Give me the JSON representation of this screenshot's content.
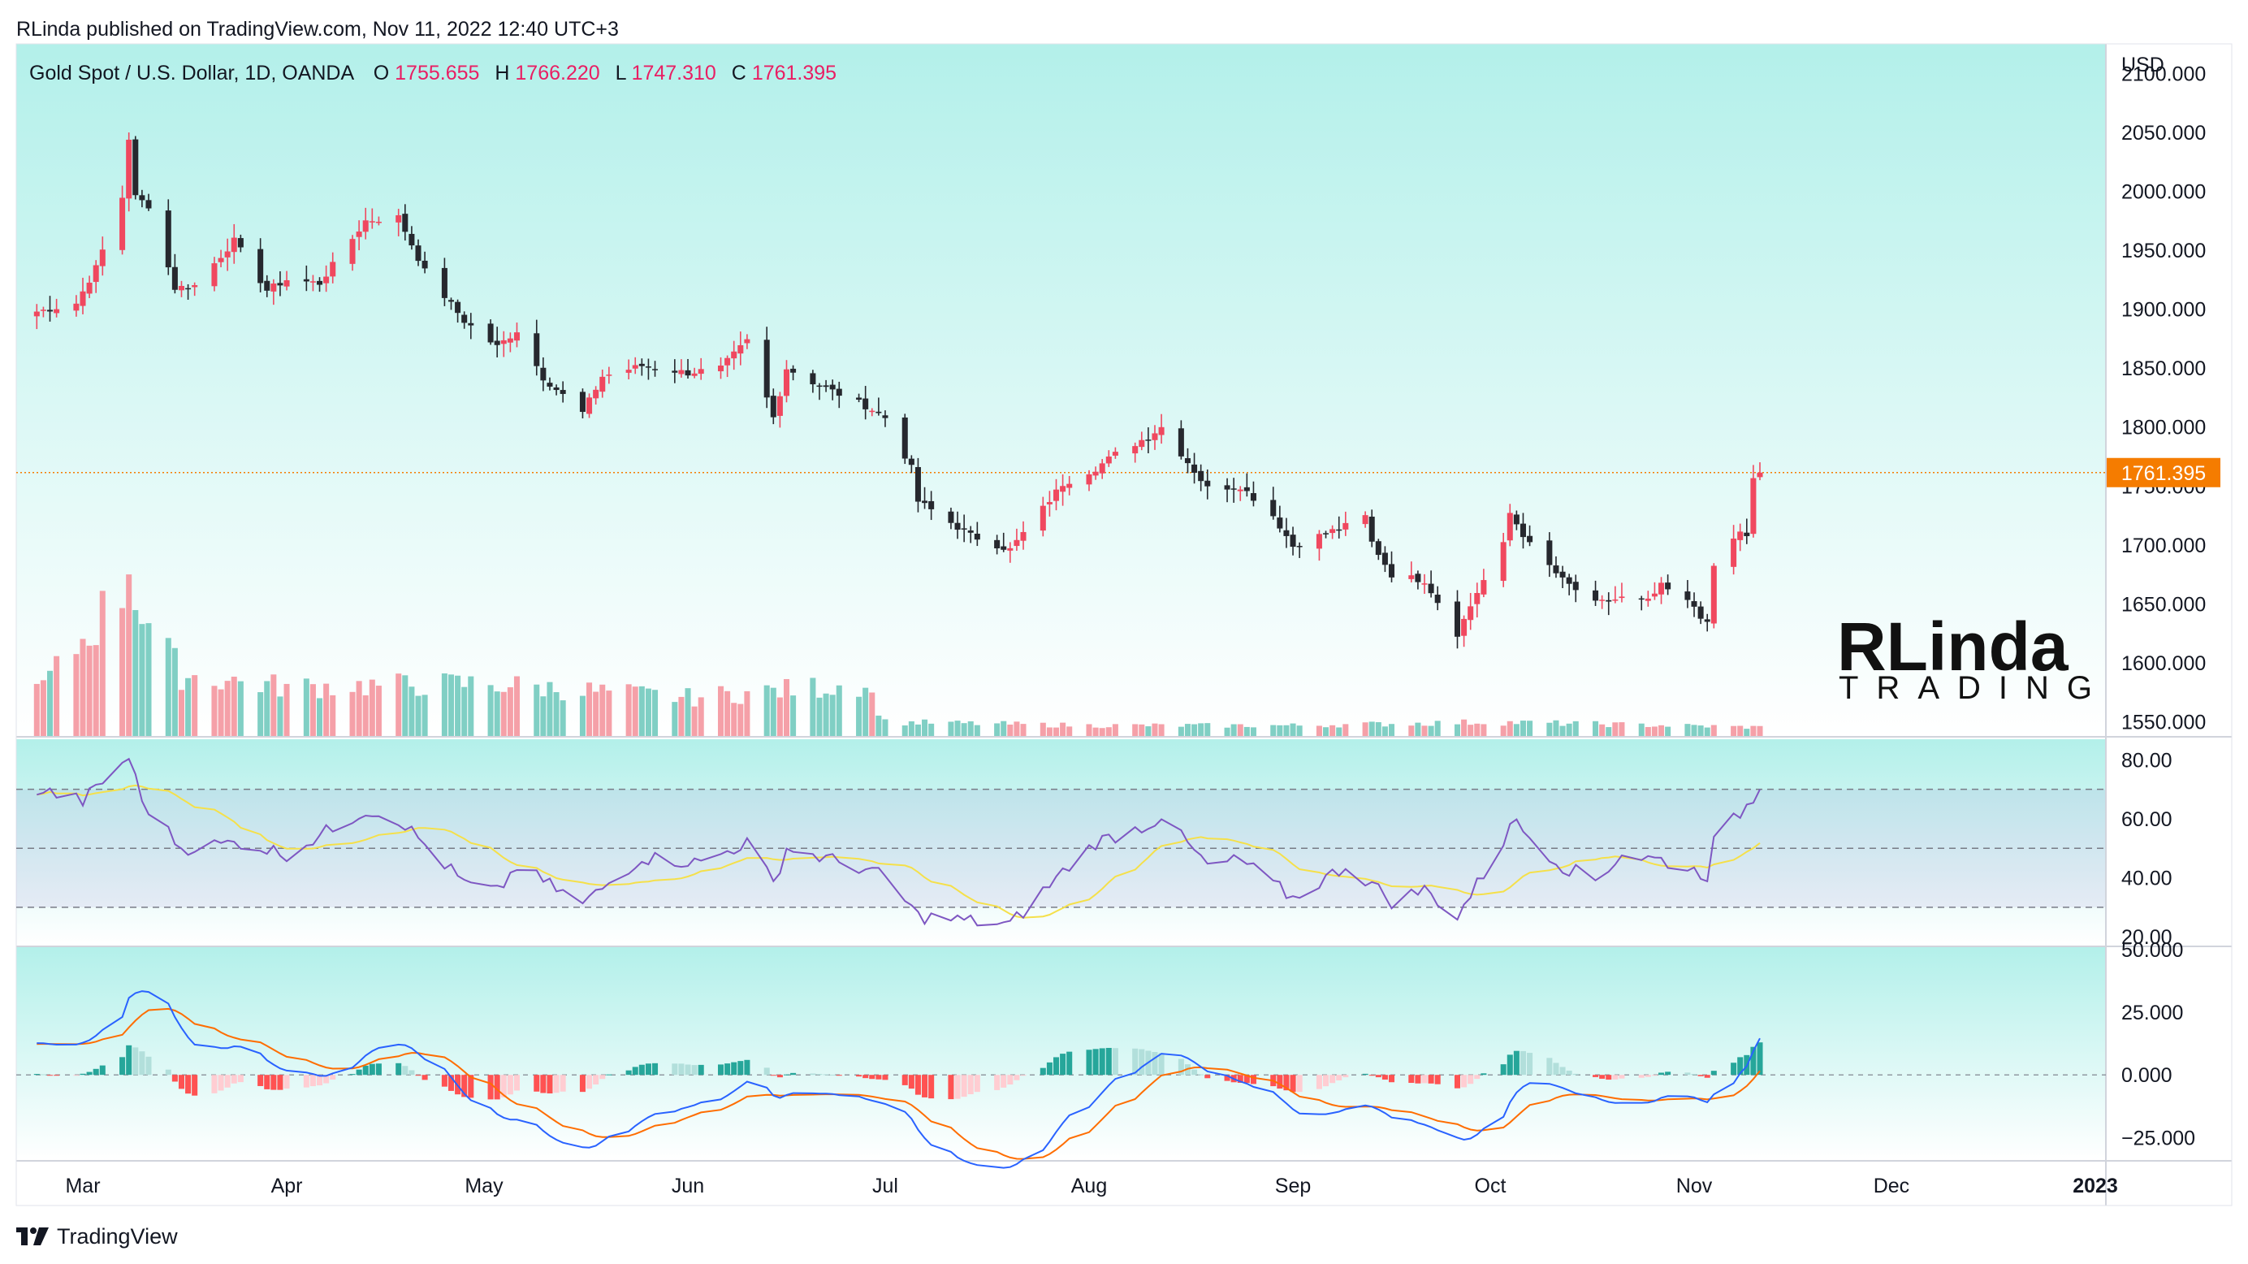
{
  "header": {
    "published_by": "RLinda published on TradingView.com, Nov 11, 2022 12:40 UTC+3"
  },
  "footer": {
    "brand": "TradingView"
  },
  "watermark": {
    "text_top": "RLinda",
    "text_bottom": "TRADING"
  },
  "colors": {
    "bg_top": "#b3f0ea",
    "bg_bottom": "#ffffff",
    "candle_up": "#f0485f",
    "candle_down": "#26282e",
    "volume_up": "#f5a0a8",
    "volume_down": "#80cfc4",
    "rsi_line": "#7e57c2",
    "rsi_ma": "#f5e04a",
    "macd_line": "#2962ff",
    "signal_line": "#ff6d00",
    "hist_pos_strong": "#26a69a",
    "hist_pos_weak": "#b2dfdb",
    "hist_neg_strong": "#ff5252",
    "hist_neg_weak": "#ffcdd2",
    "price_label_bg": "#f57c00",
    "legend_values": "#e91e63"
  },
  "chart_data": [
    {
      "type": "candlestick",
      "title": "Gold Spot / U.S. Dollar, 1D, OANDA",
      "ohlc_legend": {
        "open_label": "O",
        "open": "1755.655",
        "high_label": "H",
        "high": "1766.220",
        "low_label": "L",
        "low": "1747.310",
        "close_label": "C",
        "close": "1761.395"
      },
      "currency": "USD",
      "last_price_label": "1761.395",
      "last_price": 1761.395,
      "ylim": [
        1538,
        2125
      ],
      "y_ticks": [
        "2100.000",
        "2050.000",
        "2000.000",
        "1950.000",
        "1900.000",
        "1850.000",
        "1800.000",
        "1750.000",
        "1700.000",
        "1650.000",
        "1600.000",
        "1550.000"
      ],
      "x_ticks": [
        "Mar",
        "Apr",
        "May",
        "Jun",
        "Jul",
        "Aug",
        "Sep",
        "Oct",
        "Nov",
        "Dec",
        "2023"
      ],
      "x_tick_dates": [
        "2022-03-01",
        "2022-04-01",
        "2022-05-01",
        "2022-06-01",
        "2022-07-01",
        "2022-08-01",
        "2022-09-01",
        "2022-10-01",
        "2022-11-01",
        "2022-12-01",
        "2023-01-01"
      ],
      "date_range": [
        "2022-02-22",
        "2022-11-11"
      ],
      "close_keyframes": [
        [
          "2022-02-22",
          1898
        ],
        [
          "2022-02-28",
          1905
        ],
        [
          "2022-03-03",
          1935
        ],
        [
          "2022-03-07",
          1995
        ],
        [
          "2022-03-08",
          2045
        ],
        [
          "2022-03-09",
          1995
        ],
        [
          "2022-03-11",
          1988
        ],
        [
          "2022-03-15",
          1918
        ],
        [
          "2022-03-18",
          1920
        ],
        [
          "2022-03-24",
          1958
        ],
        [
          "2022-03-29",
          1916
        ],
        [
          "2022-04-01",
          1925
        ],
        [
          "2022-04-06",
          1922
        ],
        [
          "2022-04-13",
          1975
        ],
        [
          "2022-04-18",
          1978
        ],
        [
          "2022-04-22",
          1932
        ],
        [
          "2022-04-28",
          1890
        ],
        [
          "2022-05-03",
          1868
        ],
        [
          "2022-05-06",
          1882
        ],
        [
          "2022-05-10",
          1842
        ],
        [
          "2022-05-16",
          1812
        ],
        [
          "2022-05-19",
          1843
        ],
        [
          "2022-05-25",
          1852
        ],
        [
          "2022-06-01",
          1846
        ],
        [
          "2022-06-06",
          1850
        ],
        [
          "2022-06-10",
          1873
        ],
        [
          "2022-06-14",
          1808
        ],
        [
          "2022-06-16",
          1850
        ],
        [
          "2022-06-20",
          1838
        ],
        [
          "2022-06-28",
          1818
        ],
        [
          "2022-07-01",
          1808
        ],
        [
          "2022-07-05",
          1765
        ],
        [
          "2022-07-06",
          1737
        ],
        [
          "2022-07-14",
          1708
        ],
        [
          "2022-07-20",
          1696
        ],
        [
          "2022-07-28",
          1752
        ],
        [
          "2022-08-02",
          1765
        ],
        [
          "2022-08-05",
          1777
        ],
        [
          "2022-08-10",
          1792
        ],
        [
          "2022-08-12",
          1800
        ],
        [
          "2022-08-19",
          1748
        ],
        [
          "2022-08-24",
          1750
        ],
        [
          "2022-08-29",
          1725
        ],
        [
          "2022-09-01",
          1699
        ],
        [
          "2022-09-06",
          1710
        ],
        [
          "2022-09-09",
          1716
        ],
        [
          "2022-09-12",
          1724
        ],
        [
          "2022-09-13",
          1702
        ],
        [
          "2022-09-16",
          1675
        ],
        [
          "2022-09-21",
          1670
        ],
        [
          "2022-09-26",
          1625
        ],
        [
          "2022-09-29",
          1660
        ],
        [
          "2022-10-03",
          1700
        ],
        [
          "2022-10-04",
          1727
        ],
        [
          "2022-10-07",
          1700
        ],
        [
          "2022-10-12",
          1670
        ],
        [
          "2022-10-17",
          1650
        ],
        [
          "2022-10-21",
          1655
        ],
        [
          "2022-10-25",
          1652
        ],
        [
          "2022-10-27",
          1665
        ],
        [
          "2022-11-01",
          1648
        ],
        [
          "2022-11-03",
          1632
        ],
        [
          "2022-11-04",
          1682
        ],
        [
          "2022-11-08",
          1712
        ],
        [
          "2022-11-09",
          1706
        ],
        [
          "2022-11-10",
          1755
        ],
        [
          "2022-11-11",
          1761
        ]
      ]
    },
    {
      "type": "bar",
      "name": "volume",
      "description_keyframes": [
        [
          "2022-02-22",
          0.25
        ],
        [
          "2022-03-01",
          0.55
        ],
        [
          "2022-03-07",
          0.85
        ],
        [
          "2022-03-08",
          1.0
        ],
        [
          "2022-03-10",
          0.7
        ],
        [
          "2022-03-16",
          0.35
        ],
        [
          "2022-04-01",
          0.28
        ],
        [
          "2022-05-01",
          0.3
        ],
        [
          "2022-06-01",
          0.22
        ],
        [
          "2022-06-28",
          0.3
        ],
        [
          "2022-07-01",
          0.08
        ],
        [
          "2022-08-01",
          0.06
        ],
        [
          "2022-09-01",
          0.06
        ],
        [
          "2022-10-01",
          0.08
        ],
        [
          "2022-11-11",
          0.05
        ]
      ]
    },
    {
      "type": "line",
      "name": "RSI",
      "ylim": [
        17,
        87
      ],
      "y_ticks": [
        "80.00",
        "60.00",
        "40.00",
        "20.00"
      ],
      "bands": [
        70,
        50,
        30
      ],
      "rsi_keyframes": [
        [
          "2022-02-22",
          70
        ],
        [
          "2022-03-01",
          66
        ],
        [
          "2022-03-08",
          81
        ],
        [
          "2022-03-10",
          66
        ],
        [
          "2022-03-16",
          50
        ],
        [
          "2022-03-25",
          52
        ],
        [
          "2022-04-01",
          48
        ],
        [
          "2022-04-13",
          63
        ],
        [
          "2022-04-18",
          60
        ],
        [
          "2022-04-28",
          38
        ],
        [
          "2022-05-03",
          35
        ],
        [
          "2022-05-06",
          44
        ],
        [
          "2022-05-16",
          31
        ],
        [
          "2022-05-25",
          47
        ],
        [
          "2022-06-03",
          45
        ],
        [
          "2022-06-10",
          52
        ],
        [
          "2022-06-14",
          38
        ],
        [
          "2022-06-16",
          50
        ],
        [
          "2022-06-28",
          43
        ],
        [
          "2022-07-01",
          40
        ],
        [
          "2022-07-06",
          27
        ],
        [
          "2022-07-20",
          24
        ],
        [
          "2022-07-28",
          42
        ],
        [
          "2022-08-02",
          52
        ],
        [
          "2022-08-10",
          58
        ],
        [
          "2022-08-12",
          61
        ],
        [
          "2022-08-19",
          44
        ],
        [
          "2022-08-24",
          46
        ],
        [
          "2022-09-01",
          33
        ],
        [
          "2022-09-09",
          44
        ],
        [
          "2022-09-13",
          38
        ],
        [
          "2022-09-16",
          32
        ],
        [
          "2022-09-21",
          36
        ],
        [
          "2022-09-26",
          27
        ],
        [
          "2022-10-03",
          52
        ],
        [
          "2022-10-04",
          60
        ],
        [
          "2022-10-12",
          44
        ],
        [
          "2022-10-17",
          39
        ],
        [
          "2022-10-21",
          48
        ],
        [
          "2022-10-27",
          46
        ],
        [
          "2022-11-03",
          41
        ],
        [
          "2022-11-04",
          52
        ],
        [
          "2022-11-08",
          62
        ],
        [
          "2022-11-10",
          67
        ],
        [
          "2022-11-11",
          70
        ]
      ],
      "ma_period": 14
    },
    {
      "type": "line",
      "name": "MACD",
      "ylim": [
        -34,
        51
      ],
      "y_ticks": [
        "50.000",
        "25.000",
        "0.000",
        "−25.000"
      ],
      "fast": 12,
      "slow": 26,
      "signal": 9
    }
  ]
}
